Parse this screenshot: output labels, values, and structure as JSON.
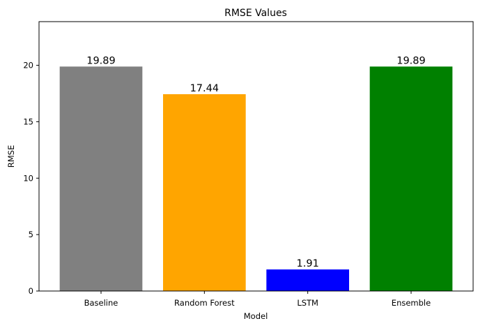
{
  "chart_data": {
    "type": "bar",
    "title": "RMSE Values",
    "xlabel": "Model",
    "ylabel": "RMSE",
    "categories": [
      "Baseline",
      "Random Forest",
      "LSTM",
      "Ensemble"
    ],
    "values": [
      19.89,
      17.44,
      1.91,
      19.89
    ],
    "value_labels": [
      "19.89",
      "17.44",
      "1.91",
      "19.89"
    ],
    "colors": [
      "#808080",
      "#ffa500",
      "#0000ff",
      "#008000"
    ],
    "ylim": [
      0,
      23.87
    ],
    "yticks": [
      0,
      5,
      10,
      15,
      20
    ],
    "ytick_labels": [
      "0",
      "5",
      "10",
      "15",
      "20"
    ],
    "grid": false,
    "legend": "none"
  }
}
